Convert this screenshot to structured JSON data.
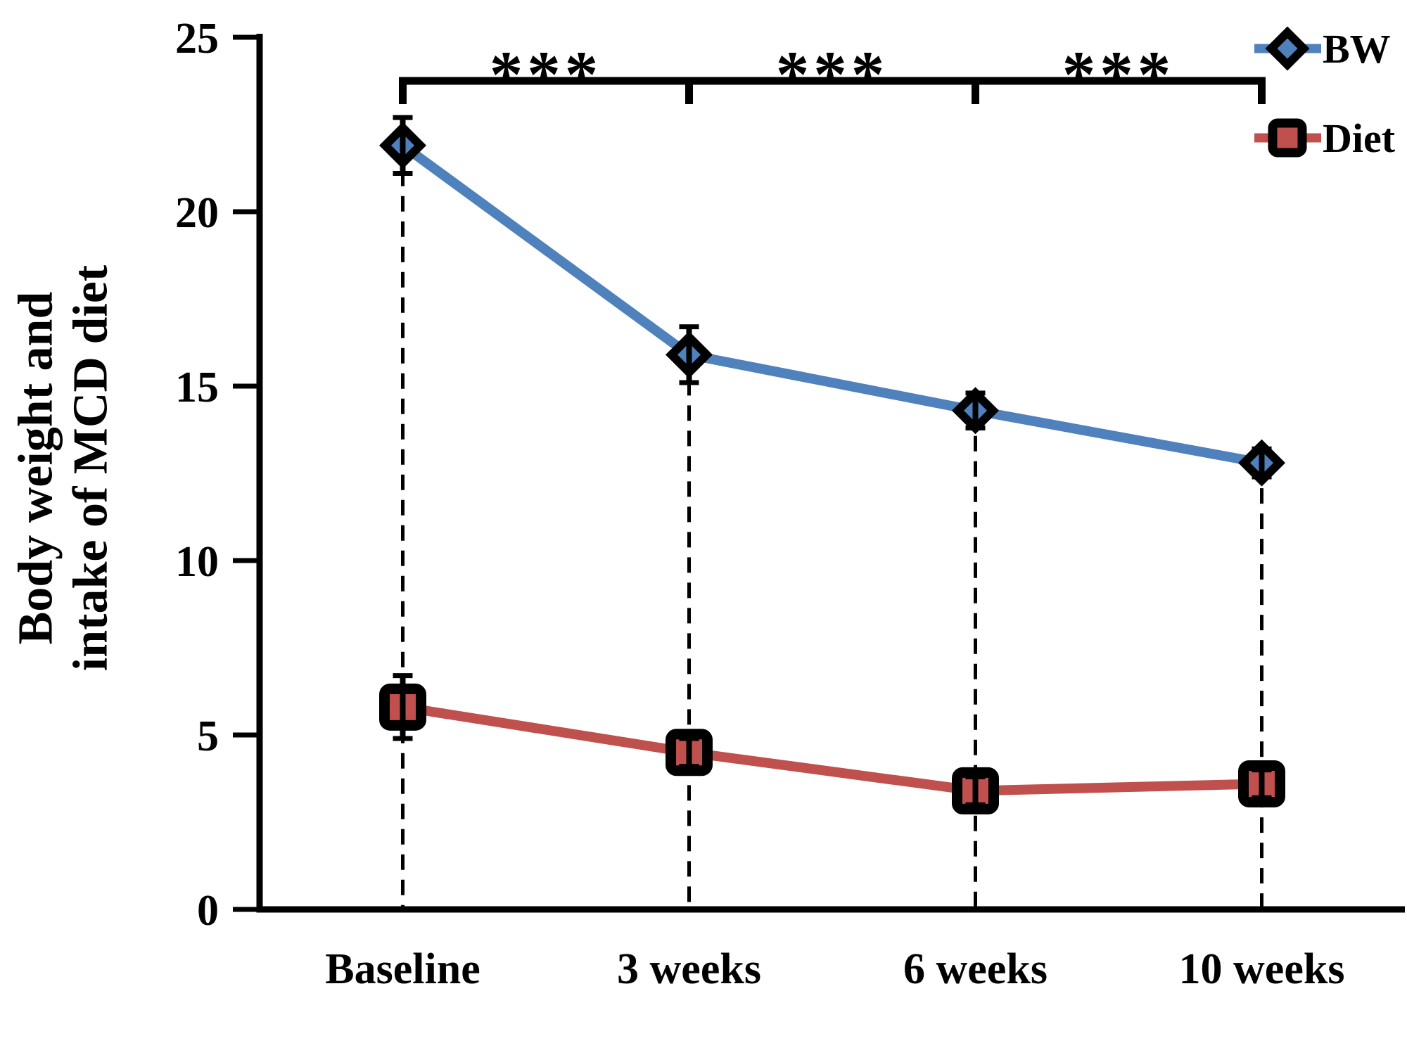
{
  "figure": {
    "y_axis_title_line1": "Body weight and",
    "y_axis_title_line2": "intake of MCD diet"
  },
  "legend": [
    {
      "label": "BW",
      "marker": "diamond"
    },
    {
      "label": "Diet",
      "marker": "square"
    }
  ],
  "chart_data": {
    "type": "line",
    "categories": [
      "Baseline",
      "3 weeks",
      "6 weeks",
      "10 weeks"
    ],
    "series": [
      {
        "name": "BW",
        "marker": "diamond",
        "color": "#4F81BD",
        "marker_border": "#000000",
        "values": [
          21.9,
          15.9,
          14.3,
          12.8
        ],
        "error": [
          0.8,
          0.8,
          0.5,
          0.4
        ]
      },
      {
        "name": "Diet",
        "marker": "square",
        "color": "#C0504D",
        "marker_border": "#000000",
        "values": [
          5.8,
          4.5,
          3.4,
          3.6
        ],
        "error": [
          0.9,
          0.4,
          0.4,
          0.4
        ]
      }
    ],
    "title": "",
    "xlabel": "",
    "ylabel": "Body weight and intake of MCD diet",
    "ylim": [
      0,
      25
    ],
    "yticks": [
      0,
      5,
      10,
      15,
      20,
      25
    ],
    "grid": false,
    "legend_position": "top-right",
    "drop_lines": "dashed vertical line from each BW point down to x-axis",
    "annotations": [
      {
        "type": "significance-bracket",
        "from": "Baseline",
        "to": "3 weeks",
        "label": "***"
      },
      {
        "type": "significance-bracket",
        "from": "3 weeks",
        "to": "6 weeks",
        "label": "***"
      },
      {
        "type": "significance-bracket",
        "from": "6 weeks",
        "to": "10 weeks",
        "label": "***"
      }
    ]
  }
}
